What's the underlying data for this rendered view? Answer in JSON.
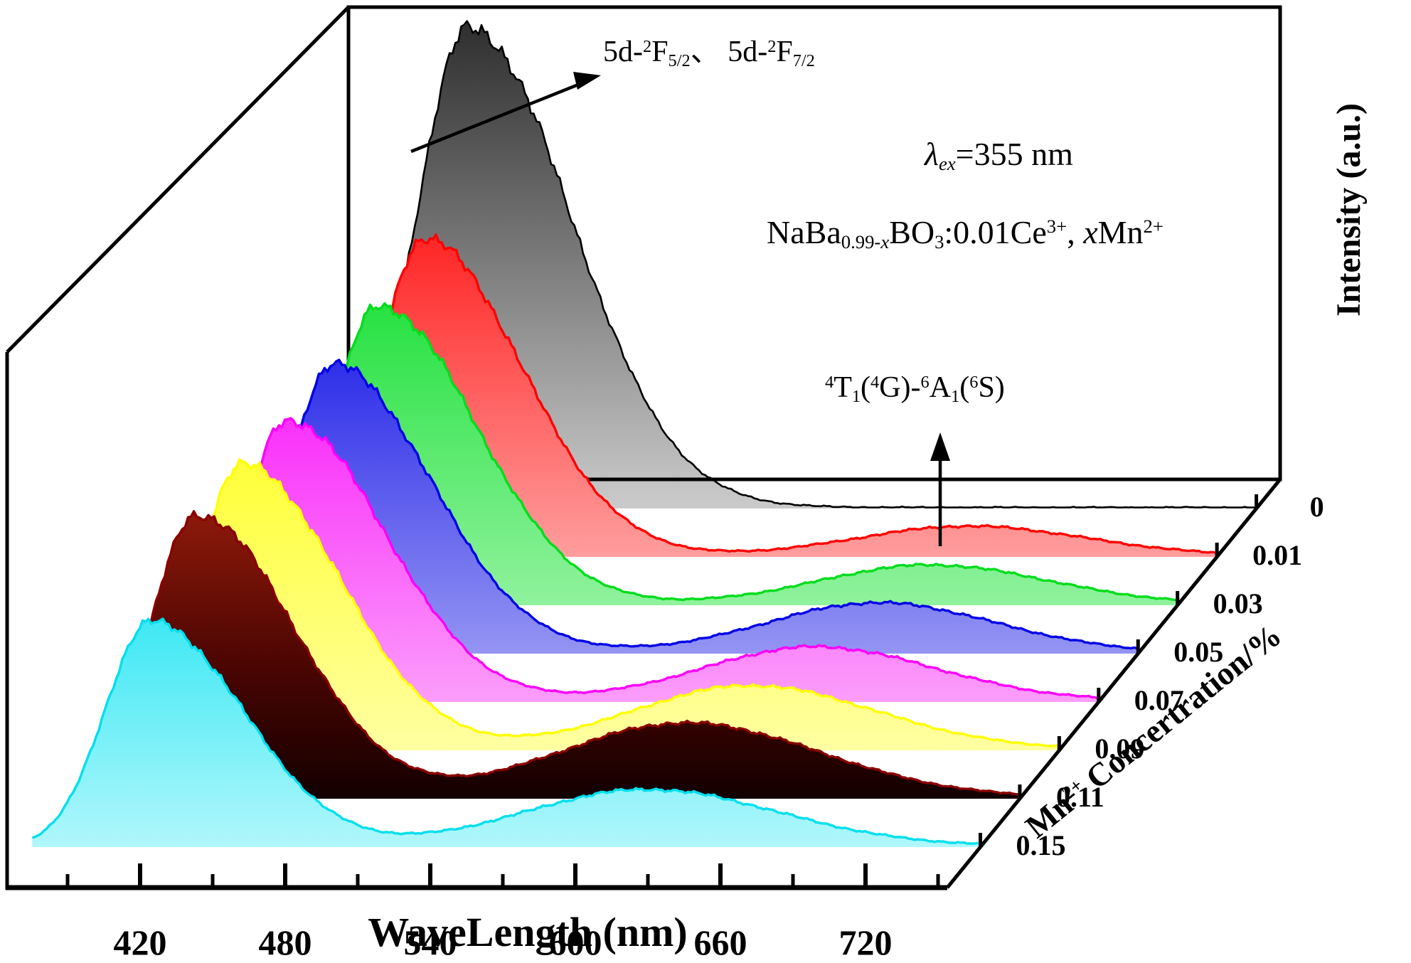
{
  "figure": {
    "xlabel": "WaveLength (nm)",
    "ylabel": "Intensity (a.u.)",
    "zlabel_parts": [
      {
        "t": "Mn"
      },
      {
        "t": "2+",
        "s": "sup"
      },
      {
        "t": " Concertration/%"
      }
    ],
    "annotations": {
      "ce_transition_parts": [
        {
          "t": "5d-"
        },
        {
          "t": "2",
          "s": "sup"
        },
        {
          "t": "F"
        },
        {
          "t": "5/2",
          "s": "sub"
        },
        {
          "t": "、 5d-"
        },
        {
          "t": "2",
          "s": "sup"
        },
        {
          "t": "F"
        },
        {
          "t": "7/2",
          "s": "sub"
        }
      ],
      "excitation_parts": [
        {
          "t": "λ",
          "s": "i"
        },
        {
          "t": "ex",
          "s": "isub"
        },
        {
          "t": "=355 nm"
        }
      ],
      "formula_parts": [
        {
          "t": "NaBa"
        },
        {
          "t": "0.99-",
          "s": "sub"
        },
        {
          "t": "x",
          "s": "isub"
        },
        {
          "t": "BO"
        },
        {
          "t": "3",
          "s": "sub"
        },
        {
          "t": ":0.01Ce"
        },
        {
          "t": "3+",
          "s": "sup"
        },
        {
          "t": ", "
        },
        {
          "t": "x",
          "s": "i"
        },
        {
          "t": "Mn"
        },
        {
          "t": "2+",
          "s": "sup"
        }
      ],
      "mn_transition_parts": [
        {
          "t": "4",
          "s": "sup"
        },
        {
          "t": "T"
        },
        {
          "t": "1",
          "s": "sub"
        },
        {
          "t": "("
        },
        {
          "t": "4",
          "s": "sup"
        },
        {
          "t": "G)-"
        },
        {
          "t": "6",
          "s": "sup"
        },
        {
          "t": "A"
        },
        {
          "t": "1",
          "s": "sub"
        },
        {
          "t": "("
        },
        {
          "t": "6",
          "s": "sup"
        },
        {
          "t": "S)"
        }
      ]
    }
  },
  "chart_data": {
    "type": "area",
    "projection": "3d-waterfall",
    "title": "",
    "xlabel": "WaveLength (nm)",
    "ylabel": "Intensity (a.u.)",
    "zlabel": "Mn2+ Concertration/%",
    "x_range_nm": [
      370,
      765
    ],
    "x_ticks_major": [
      420,
      480,
      540,
      600,
      660,
      720
    ],
    "x_ticks_minor": [
      390,
      450,
      510,
      570,
      630,
      690,
      750
    ],
    "y_scale": "arbitrary units, unlabeled axis",
    "excitation": "lambda_ex = 355 nm",
    "compound": "NaBa(0.99-x)BO3:0.01Ce3+, xMn2+",
    "ce_band_assignment": "5d-2F5/2, 5d-2F7/2",
    "mn_band_assignment": "4T1(4G)-6A1(6S)",
    "legend_position": "depth axis labels, lower right diagonal",
    "grid": false,
    "z_values": [
      "0",
      "0.01",
      "0.03",
      "0.05",
      "0.07",
      "0.09",
      "0.11",
      "0.15"
    ],
    "series": [
      {
        "concentration": "0",
        "line_color": "#000000",
        "fill": [
          "#2e2e2e",
          "#cbcbcb"
        ],
        "ce_peak": {
          "center_nm": 420,
          "rel_height": 1.0,
          "sigma_left_nm": 22,
          "sigma_right_nm": 42
        },
        "mn_peak": null
      },
      {
        "concentration": "0.01",
        "line_color": "#ff0000",
        "fill": [
          "#ff2424",
          "#ff9d9d"
        ],
        "ce_peak": {
          "center_nm": 420,
          "rel_height": 0.66,
          "sigma_left_nm": 19,
          "sigma_right_nm": 40
        },
        "mn_peak": {
          "center_nm": 645,
          "rel_height": 0.062,
          "sigma_nm": 45
        }
      },
      {
        "concentration": "0.03",
        "line_color": "#00dd1c",
        "fill": [
          "#25e140",
          "#90f29d"
        ],
        "ce_peak": {
          "center_nm": 420,
          "rel_height": 0.622,
          "sigma_left_nm": 19,
          "sigma_right_nm": 40
        },
        "mn_peak": {
          "center_nm": 648,
          "rel_height": 0.082,
          "sigma_nm": 45
        }
      },
      {
        "concentration": "0.05",
        "line_color": "#0000e6",
        "fill": [
          "#2d2de9",
          "#9494f3"
        ],
        "ce_peak": {
          "center_nm": 420,
          "rel_height": 0.6,
          "sigma_left_nm": 19,
          "sigma_right_nm": 40
        },
        "mn_peak": {
          "center_nm": 645,
          "rel_height": 0.104,
          "sigma_nm": 45
        }
      },
      {
        "concentration": "0.07",
        "line_color": "#fb00fb",
        "fill": [
          "#fa2efa",
          "#fb9dfb"
        ],
        "ce_peak": {
          "center_nm": 420,
          "rel_height": 0.585,
          "sigma_left_nm": 19,
          "sigma_right_nm": 40
        },
        "mn_peak": {
          "center_nm": 638,
          "rel_height": 0.113,
          "sigma_nm": 46
        }
      },
      {
        "concentration": "0.09",
        "line_color": "#ffff00",
        "fill": [
          "#ffff38",
          "#ffffa2"
        ],
        "ce_peak": {
          "center_nm": 420,
          "rel_height": 0.593,
          "sigma_left_nm": 19,
          "sigma_right_nm": 40
        },
        "mn_peak": {
          "center_nm": 630,
          "rel_height": 0.133,
          "sigma_nm": 48
        }
      },
      {
        "concentration": "0.11",
        "line_color": "#8b0000",
        "fill": [
          "#8f1a0a",
          "#4a0502",
          "#120000"
        ],
        "ce_peak": {
          "center_nm": 420,
          "rel_height": 0.59,
          "sigma_left_nm": 19,
          "sigma_right_nm": 40
        },
        "mn_peak": {
          "center_nm": 622,
          "rel_height": 0.156,
          "sigma_nm": 52
        }
      },
      {
        "concentration": "0.15",
        "line_color": "#00dfee",
        "fill": [
          "#3ce8f4",
          "#b0f7fb"
        ],
        "ce_peak": {
          "center_nm": 420,
          "rel_height": 0.467,
          "sigma_left_nm": 19,
          "sigma_right_nm": 38
        },
        "mn_peak": {
          "center_nm": 625,
          "rel_height": 0.118,
          "sigma_nm": 50
        }
      }
    ]
  }
}
